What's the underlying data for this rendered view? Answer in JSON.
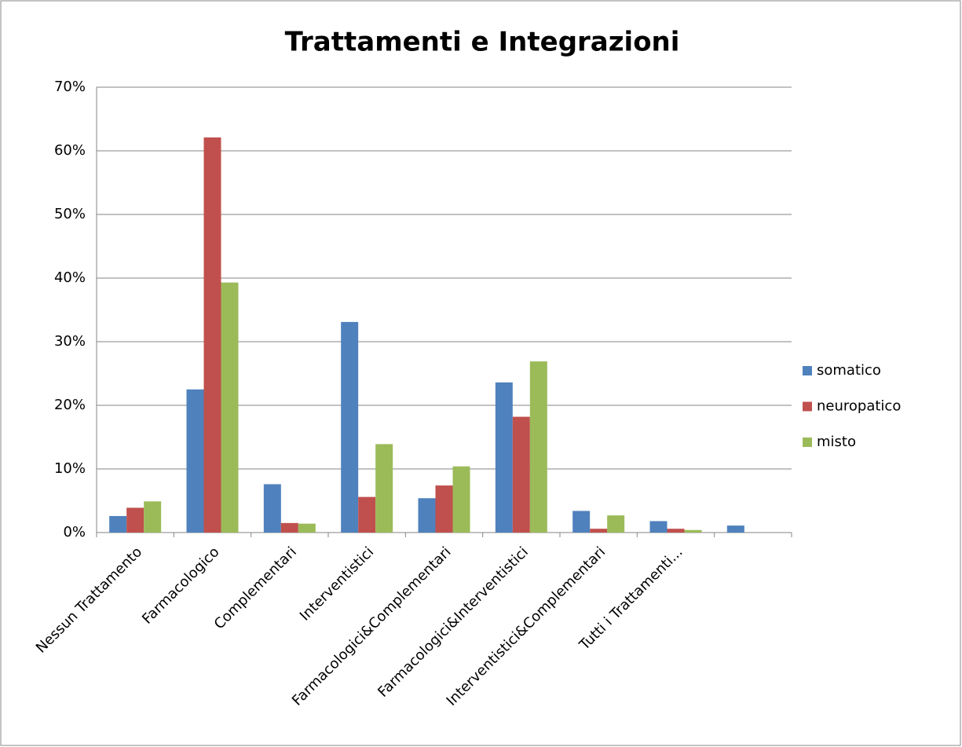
{
  "chart_data": {
    "type": "bar",
    "title": "Trattamenti e Integrazioni",
    "categories": [
      "Nessun Trattamento",
      "Farmacologico",
      "Complementari",
      "Interventistici",
      "Farmacologici&Complementari",
      "Farmacologici&Interventistici",
      "Interventistici&Complementari",
      "Tutti i Trattamenti...",
      null
    ],
    "series": [
      {
        "name": "somatico",
        "color": "#4f81bd",
        "values": [
          2.6,
          22.5,
          7.6,
          33.1,
          5.4,
          23.6,
          3.4,
          1.8,
          1.1
        ]
      },
      {
        "name": "neuropatico",
        "color": "#c0504d",
        "values": [
          3.9,
          62.1,
          1.5,
          5.6,
          7.4,
          18.2,
          0.6,
          0.6,
          0
        ]
      },
      {
        "name": "misto",
        "color": "#9bbb59",
        "values": [
          4.9,
          39.3,
          1.4,
          13.9,
          10.4,
          26.9,
          2.7,
          0.4,
          0
        ]
      }
    ],
    "ylim": [
      0,
      70
    ],
    "yticks": [
      {
        "value": 0,
        "label": "0%"
      },
      {
        "value": 10,
        "label": "10%"
      },
      {
        "value": 20,
        "label": "20%"
      },
      {
        "value": 30,
        "label": "30%"
      },
      {
        "value": 40,
        "label": "40%"
      },
      {
        "value": 50,
        "label": "50%"
      },
      {
        "value": 60,
        "label": "60%"
      },
      {
        "value": 70,
        "label": "70%"
      }
    ],
    "grid": true,
    "legend": "right"
  }
}
